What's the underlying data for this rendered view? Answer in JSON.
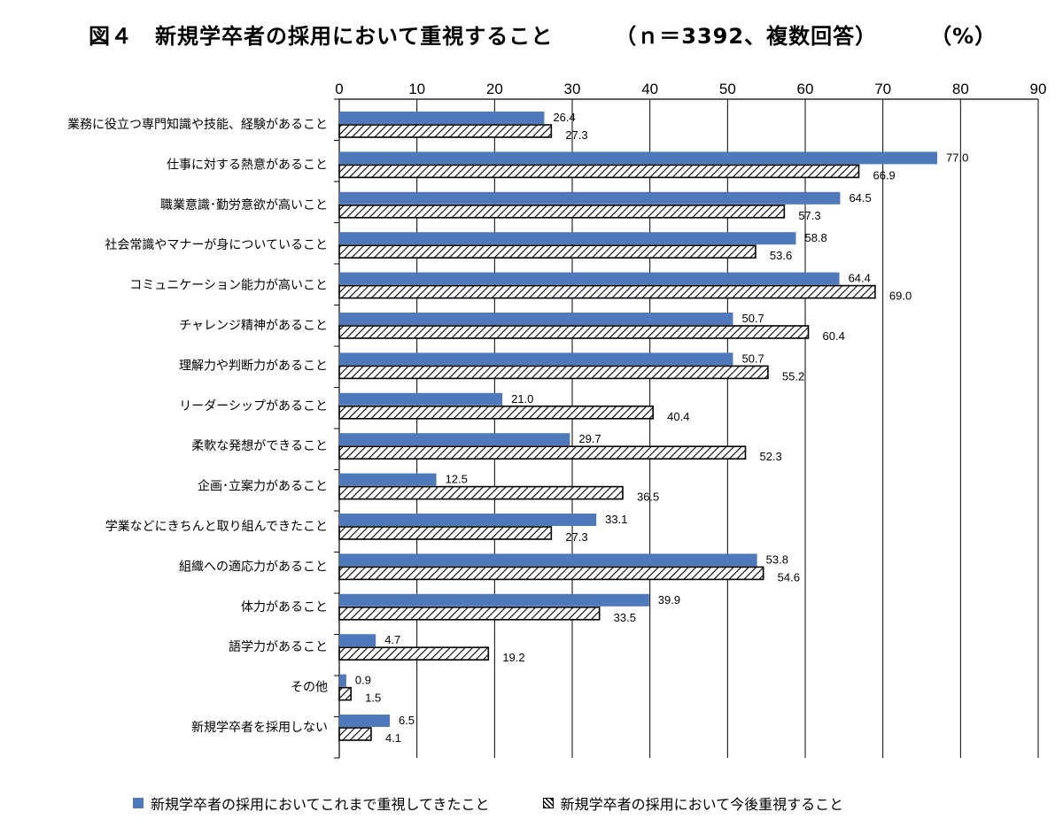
{
  "title": {
    "main": "図４　新規学卒者の採用において重視すること",
    "meta": "（ｎ＝3392、複数回答）",
    "unit": "（%）"
  },
  "chart_data": {
    "type": "bar",
    "orientation": "horizontal",
    "xlim": [
      0,
      90
    ],
    "ticks": [
      0,
      10,
      20,
      30,
      40,
      50,
      60,
      70,
      80,
      90
    ],
    "grid": true,
    "legend_position": "bottom",
    "categories": [
      "業務に役立つ専門知識や技能、経験があること",
      "仕事に対する熱意があること",
      "職業意識･勤労意欲が高いこと",
      "社会常識やマナーが身についていること",
      "コミュニケーション能力が高いこと",
      "チャレンジ精神があること",
      "理解力や判断力があること",
      "リーダーシップがあること",
      "柔軟な発想ができること",
      "企画･立案力があること",
      "学業などにきちんと取り組んできたこと",
      "組織への適応力があること",
      "体力があること",
      "語学力があること",
      "その他",
      "新規学卒者を採用しない"
    ],
    "series": [
      {
        "name": "新規学卒者の採用においてこれまで重視してきたこと",
        "color": "#4f79bb",
        "pattern": "solid",
        "values": [
          26.4,
          77.0,
          64.5,
          58.8,
          64.4,
          50.7,
          50.7,
          21.0,
          29.7,
          12.5,
          33.1,
          53.8,
          39.9,
          4.7,
          0.9,
          6.5
        ]
      },
      {
        "name": "新規学卒者の採用において今後重視すること",
        "color": "#000000",
        "pattern": "hatch",
        "values": [
          27.3,
          66.9,
          57.3,
          53.6,
          69.0,
          60.4,
          55.2,
          40.4,
          52.3,
          36.5,
          27.3,
          54.6,
          33.5,
          19.2,
          1.5,
          4.1
        ]
      }
    ]
  }
}
